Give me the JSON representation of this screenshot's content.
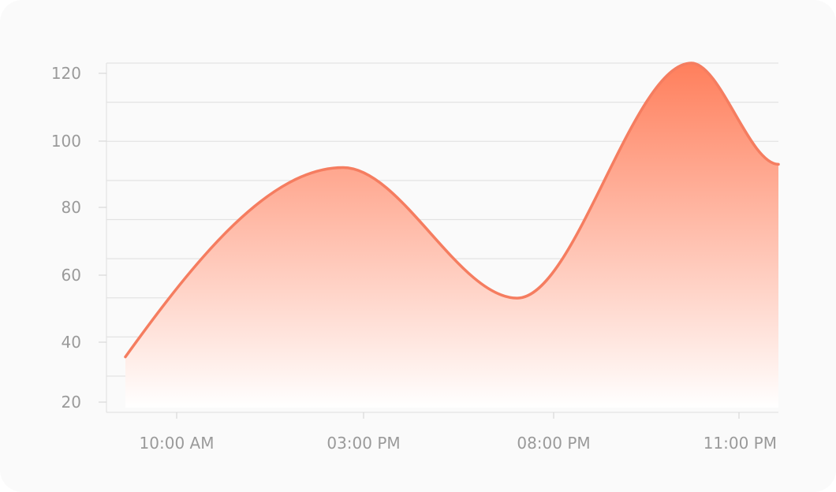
{
  "chart_data": {
    "type": "area",
    "title": "",
    "xlabel": "",
    "ylabel": "",
    "x_tick_labels": [
      "10:00 AM",
      "03:00 PM",
      "08:00 PM",
      "11:00 PM"
    ],
    "y_ticks": [
      20,
      40,
      60,
      80,
      100,
      120
    ],
    "ylim": [
      17,
      124
    ],
    "grid": true,
    "colors": {
      "line": "#f57d60",
      "fill_top": "#ff7f5c",
      "fill_bottom": "#ffffff",
      "tick_text": "#9a9a9a",
      "grid": "#e3e3e3"
    },
    "series": [
      {
        "points": [
          {
            "x": "08:00 AM",
            "y": 34
          },
          {
            "x": "01:00 PM",
            "y": 92
          },
          {
            "x": "05:00 PM",
            "y": 52
          },
          {
            "x": "09:00 PM",
            "y": 124
          },
          {
            "x": "11:00 PM",
            "y": 93
          }
        ]
      }
    ]
  }
}
